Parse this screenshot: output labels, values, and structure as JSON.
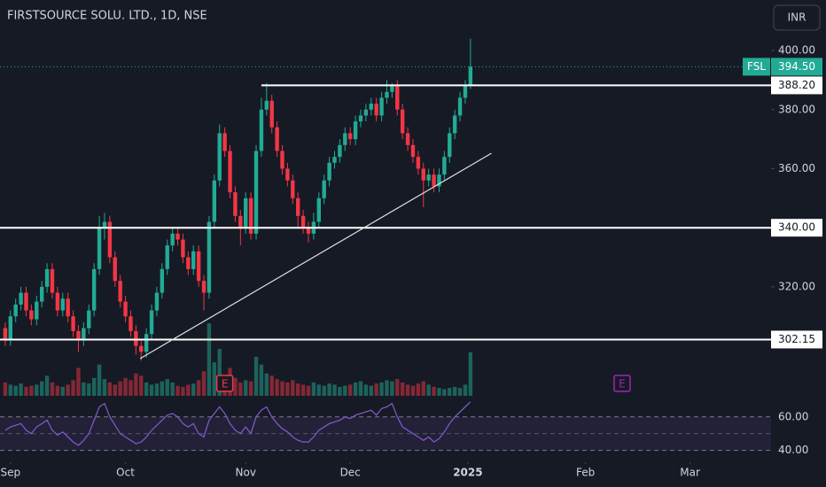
{
  "chart_data": {
    "type": "candlestick",
    "title": "FIRSTSOURCE SOLU. LTD., 1D, NSE",
    "currency": "INR",
    "symbol": "FSL",
    "last_price": {
      "value": 394.5,
      "label": "394.50"
    },
    "up_color": "#22ab94",
    "down_color": "#f23645",
    "ylim": [
      283.1,
      417.1
    ],
    "yticks": [
      {
        "value": 400,
        "label": "400.00"
      },
      {
        "value": 380,
        "label": "380.00"
      },
      {
        "value": 360,
        "label": "360.00"
      },
      {
        "value": 320,
        "label": "320.00"
      }
    ],
    "xlim": [
      -1,
      146.5
    ],
    "xticks": [
      {
        "value": 1,
        "label": "Sep"
      },
      {
        "value": 23,
        "label": "Oct"
      },
      {
        "value": 46,
        "label": "Nov"
      },
      {
        "value": 66,
        "label": "Dec"
      },
      {
        "value": 88.5,
        "label": "2025"
      },
      {
        "value": 111,
        "label": "Feb"
      },
      {
        "value": 131,
        "label": "Mar"
      }
    ],
    "levels": [
      {
        "value": 388.2,
        "label": "388.20",
        "start": 49
      },
      {
        "value": 340,
        "label": "340.00",
        "start": -1
      },
      {
        "value": 302.15,
        "label": "302.15",
        "start": -1
      }
    ],
    "trendline": {
      "start": [
        25.8,
        295.7
      ],
      "end": [
        93,
        365.2
      ]
    },
    "events": [
      {
        "label": "E",
        "index": 42,
        "color": "#f23645"
      },
      {
        "label": "E",
        "index": 118,
        "color": "#9c27b0"
      }
    ],
    "ohlc": [
      [
        306,
        308,
        300,
        302
      ],
      [
        302,
        312,
        300,
        310
      ],
      [
        310,
        316,
        308,
        314
      ],
      [
        314,
        320,
        312,
        318
      ],
      [
        318,
        320,
        310,
        312
      ],
      [
        312,
        314,
        307,
        309
      ],
      [
        309,
        317,
        307,
        315
      ],
      [
        315,
        322,
        313,
        320
      ],
      [
        320,
        328,
        318,
        326
      ],
      [
        326,
        328,
        316,
        318
      ],
      [
        318,
        320,
        310,
        312
      ],
      [
        312,
        318,
        310,
        316
      ],
      [
        316,
        318,
        308,
        310
      ],
      [
        310,
        312,
        303,
        305
      ],
      [
        305,
        307,
        298,
        302
      ],
      [
        302,
        308,
        300,
        306
      ],
      [
        306,
        314,
        304,
        312
      ],
      [
        312,
        328,
        310,
        326
      ],
      [
        326,
        344,
        324,
        340
      ],
      [
        340,
        345,
        336,
        342
      ],
      [
        342,
        344,
        328,
        330
      ],
      [
        330,
        332,
        320,
        322
      ],
      [
        322,
        324,
        313,
        315
      ],
      [
        315,
        317,
        308,
        310
      ],
      [
        310,
        312,
        303,
        305
      ],
      [
        305,
        307,
        297,
        300
      ],
      [
        300,
        302,
        295,
        298
      ],
      [
        298,
        306,
        296,
        304
      ],
      [
        304,
        314,
        302,
        312
      ],
      [
        312,
        320,
        310,
        318
      ],
      [
        318,
        328,
        316,
        326
      ],
      [
        326,
        336,
        324,
        334
      ],
      [
        334,
        340,
        332,
        338
      ],
      [
        338,
        340,
        334,
        336
      ],
      [
        336,
        338,
        328,
        330
      ],
      [
        330,
        332,
        324,
        326
      ],
      [
        326,
        334,
        324,
        332
      ],
      [
        332,
        334,
        320,
        322
      ],
      [
        322,
        324,
        312,
        318
      ],
      [
        318,
        344,
        316,
        342
      ],
      [
        342,
        358,
        340,
        356
      ],
      [
        356,
        375,
        354,
        372
      ],
      [
        372,
        374,
        364,
        366
      ],
      [
        366,
        368,
        350,
        352
      ],
      [
        352,
        354,
        342,
        344
      ],
      [
        344,
        346,
        334,
        340
      ],
      [
        340,
        352,
        338,
        350
      ],
      [
        350,
        352,
        336,
        338
      ],
      [
        338,
        368,
        336,
        366
      ],
      [
        366,
        384,
        364,
        380
      ],
      [
        380,
        389,
        378,
        383
      ],
      [
        383,
        385,
        372,
        374
      ],
      [
        374,
        376,
        364,
        366
      ],
      [
        366,
        368,
        358,
        360
      ],
      [
        360,
        362,
        354,
        356
      ],
      [
        356,
        358,
        348,
        350
      ],
      [
        350,
        352,
        340,
        344
      ],
      [
        344,
        346,
        338,
        340
      ],
      [
        340,
        342,
        335,
        338
      ],
      [
        338,
        345,
        336,
        342
      ],
      [
        342,
        352,
        340,
        350
      ],
      [
        350,
        358,
        348,
        356
      ],
      [
        356,
        364,
        354,
        362
      ],
      [
        362,
        366,
        360,
        364
      ],
      [
        364,
        370,
        362,
        368
      ],
      [
        368,
        374,
        366,
        372
      ],
      [
        372,
        374,
        368,
        370
      ],
      [
        370,
        378,
        368,
        376
      ],
      [
        376,
        380,
        374,
        378
      ],
      [
        378,
        382,
        376,
        380
      ],
      [
        380,
        384,
        378,
        382
      ],
      [
        382,
        384,
        376,
        378
      ],
      [
        378,
        386,
        376,
        384
      ],
      [
        384,
        390,
        382,
        386
      ],
      [
        386,
        389,
        384,
        388
      ],
      [
        388,
        390,
        378,
        380
      ],
      [
        380,
        382,
        370,
        372
      ],
      [
        372,
        374,
        366,
        368
      ],
      [
        368,
        370,
        362,
        364
      ],
      [
        364,
        366,
        358,
        360
      ],
      [
        360,
        362,
        347,
        356
      ],
      [
        356,
        360,
        354,
        358
      ],
      [
        358,
        360,
        352,
        354
      ],
      [
        354,
        360,
        352,
        358
      ],
      [
        358,
        366,
        356,
        364
      ],
      [
        364,
        374,
        362,
        372
      ],
      [
        372,
        380,
        370,
        378
      ],
      [
        378,
        386,
        376,
        384
      ],
      [
        384,
        390,
        382,
        388
      ],
      [
        388,
        404,
        387,
        394.5
      ]
    ],
    "volume": [
      1.2,
      1.0,
      0.9,
      1.1,
      0.8,
      0.9,
      1.0,
      1.3,
      1.8,
      1.2,
      0.9,
      0.8,
      1.0,
      1.4,
      2.5,
      1.2,
      1.1,
      1.6,
      2.8,
      1.5,
      1.2,
      1.0,
      1.3,
      1.6,
      1.4,
      2.0,
      1.8,
      1.2,
      1.0,
      1.1,
      1.3,
      1.5,
      1.2,
      0.9,
      0.8,
      1.0,
      1.1,
      1.4,
      2.2,
      6.5,
      3.0,
      4.2,
      1.8,
      2.5,
      1.6,
      1.2,
      1.4,
      1.3,
      3.5,
      2.8,
      2.0,
      1.8,
      1.5,
      1.3,
      1.2,
      1.4,
      1.1,
      1.0,
      0.9,
      1.2,
      1.0,
      0.9,
      1.1,
      1.0,
      0.8,
      0.9,
      1.0,
      1.2,
      1.3,
      1.0,
      0.9,
      1.1,
      1.2,
      1.4,
      1.3,
      1.5,
      1.2,
      1.0,
      0.9,
      1.1,
      1.3,
      1.0,
      0.8,
      0.7,
      0.6,
      0.7,
      0.8,
      0.7,
      1.0,
      3.9
    ],
    "rsi": {
      "color": "#7e57c2",
      "ylim": [
        34,
        71
      ],
      "yticks": [
        {
          "value": 40,
          "label": "40.00"
        },
        {
          "value": 60,
          "label": "60.00"
        }
      ],
      "midline": 50,
      "values": [
        52,
        54,
        55,
        56,
        52,
        50,
        54,
        56,
        58,
        52,
        49,
        51,
        48,
        45,
        43,
        46,
        50,
        58,
        66,
        68,
        60,
        55,
        50,
        48,
        46,
        44,
        45,
        48,
        52,
        55,
        58,
        61,
        62,
        60,
        56,
        54,
        56,
        50,
        48,
        58,
        62,
        66,
        62,
        56,
        52,
        50,
        54,
        50,
        60,
        64,
        66,
        60,
        56,
        53,
        51,
        48,
        46,
        45,
        45,
        48,
        52,
        54,
        56,
        57,
        58,
        60,
        59,
        61,
        62,
        63,
        64,
        61,
        65,
        66,
        68,
        60,
        54,
        52,
        50,
        48,
        46,
        48,
        45,
        47,
        51,
        56,
        60,
        63,
        66,
        69
      ]
    }
  }
}
